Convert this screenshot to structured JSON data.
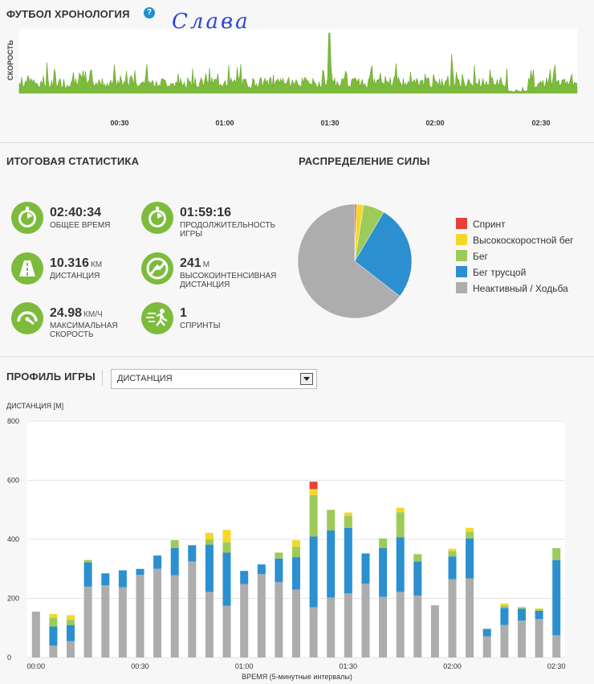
{
  "header": {
    "title": "ФУТБОЛ ХРОНОЛОГИЯ",
    "help_glyph": "?",
    "note": "Слава"
  },
  "timeline": {
    "ylabel": "СКОРОСТЬ",
    "ticks": [
      "00:30",
      "01:00",
      "01:30",
      "02:00",
      "02:30"
    ],
    "color": "#7dbb3c"
  },
  "summary": {
    "title": "ИТОГОВАЯ СТАТИСТИКА",
    "items": [
      {
        "value": "02:40:34",
        "unit": "",
        "label": "ОБЩЕЕ ВРЕМЯ",
        "icon": "stopwatch-icon"
      },
      {
        "value": "01:59:16",
        "unit": "",
        "label": "ПРОДОЛЖИТЕЛЬНОСТЬ ИГРЫ",
        "icon": "stopwatch-icon"
      },
      {
        "value": "10.316",
        "unit": "КМ",
        "label": "ДИСТАНЦИЯ",
        "icon": "road-icon"
      },
      {
        "value": "241",
        "unit": "М",
        "label": "ВЫСОКОИНТЕНСИВНАЯ ДИСТАНЦИЯ",
        "icon": "intensity-gauge-icon"
      },
      {
        "value": "24.98",
        "unit": "КМ/Ч",
        "label": "МАКСИМАЛЬНАЯ СКОРОСТЬ",
        "icon": "speedometer-icon"
      },
      {
        "value": "1",
        "unit": "",
        "label": "СПРИНТЫ",
        "icon": "sprint-icon"
      }
    ]
  },
  "power": {
    "title": "РАСПРЕДЕЛЕНИЕ СИЛЫ",
    "legend": [
      {
        "label": "Спринт",
        "color": "#e8413a"
      },
      {
        "label": "Высокоскоростной бег",
        "color": "#f4d829"
      },
      {
        "label": "Бег",
        "color": "#9ccb59"
      },
      {
        "label": "Бег трусцой",
        "color": "#2b8fd0"
      },
      {
        "label": "Неактивный / Ходьба",
        "color": "#adadad"
      }
    ]
  },
  "profile": {
    "title": "ПРОФИЛЬ ИГРЫ",
    "select_value": "ДИСТАНЦИЯ"
  },
  "chart_data": [
    {
      "type": "pie",
      "title": "РАСПРЕДЕЛЕНИЕ СИЛЫ",
      "labels": [
        "Спринт",
        "Высокоскоростной бег",
        "Бег",
        "Бег трусцой",
        "Неактивный / Ходьба"
      ],
      "values": [
        0.5,
        2,
        6,
        27,
        64.5
      ],
      "colors": [
        "#e8413a",
        "#f4d829",
        "#9ccb59",
        "#2b8fd0",
        "#adadad"
      ],
      "legend": "right"
    },
    {
      "type": "bar",
      "stacked": true,
      "ylabel": "ДИСТАНЦИЯ [М]",
      "xlabel": "ВРЕМЯ (5-минутные интервалы)",
      "ylim": [
        0,
        800
      ],
      "yticks": [
        0,
        200,
        400,
        600,
        800
      ],
      "xticks": [
        "00:00",
        "00:30",
        "01:00",
        "01:30",
        "02:00",
        "02:30"
      ],
      "grid": true,
      "series": [
        {
          "name": "Неактивный / Ходьба",
          "color": "#adadad",
          "values": [
            155,
            40,
            55,
            240,
            245,
            238,
            280,
            300,
            278,
            325,
            222,
            175,
            248,
            282,
            255,
            230,
            170,
            203,
            217,
            250,
            205,
            222,
            210,
            177,
            265,
            268,
            72,
            110,
            125,
            130,
            75
          ]
        },
        {
          "name": "Бег трусцой",
          "color": "#2b8fd0",
          "values": [
            0,
            65,
            55,
            82,
            40,
            57,
            20,
            45,
            92,
            55,
            160,
            180,
            45,
            33,
            80,
            110,
            240,
            227,
            222,
            102,
            165,
            185,
            115,
            0,
            77,
            135,
            25,
            58,
            40,
            28,
            255
          ]
        },
        {
          "name": "Бег",
          "color": "#9ccb59",
          "values": [
            0,
            30,
            18,
            8,
            0,
            0,
            0,
            0,
            27,
            0,
            18,
            35,
            0,
            0,
            20,
            35,
            140,
            70,
            40,
            0,
            33,
            85,
            25,
            0,
            18,
            22,
            0,
            8,
            5,
            5,
            40
          ]
        },
        {
          "name": "Высокоскоростной бег",
          "color": "#f4d829",
          "values": [
            0,
            12,
            15,
            0,
            0,
            0,
            0,
            0,
            0,
            0,
            22,
            42,
            0,
            0,
            0,
            22,
            20,
            0,
            12,
            0,
            0,
            15,
            0,
            0,
            8,
            14,
            0,
            7,
            0,
            3,
            0
          ]
        },
        {
          "name": "Спринт",
          "color": "#e8413a",
          "values": [
            0,
            0,
            0,
            0,
            0,
            0,
            0,
            0,
            0,
            0,
            0,
            0,
            0,
            0,
            0,
            0,
            25,
            0,
            0,
            0,
            0,
            0,
            0,
            0,
            0,
            0,
            0,
            0,
            0,
            0,
            0
          ]
        }
      ]
    }
  ]
}
